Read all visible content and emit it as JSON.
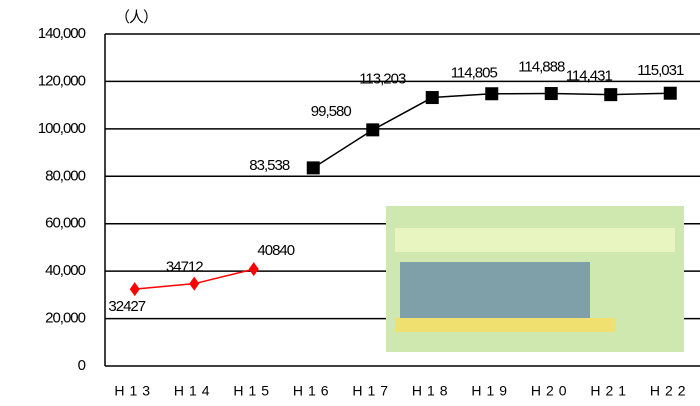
{
  "chart_data": {
    "type": "line",
    "y_unit_label": "（人）",
    "categories": [
      "H13",
      "H14",
      "H15",
      "H16",
      "H17",
      "H18",
      "H19",
      "H20",
      "H21",
      "H22"
    ],
    "series": [
      {
        "color": "#ff0000",
        "marker": "diamond",
        "values": [
          32427,
          34712,
          40840,
          null,
          null,
          null,
          null,
          null,
          null,
          null
        ]
      },
      {
        "color": "#000000",
        "marker": "square",
        "values": [
          null,
          null,
          null,
          83538,
          99580,
          113203,
          114805,
          114888,
          114431,
          115031
        ],
        "value_labels": [
          null,
          null,
          null,
          "83,538",
          "99,580",
          "113,203",
          "114,805",
          "114,888",
          "114,431",
          "115,031"
        ]
      }
    ],
    "ylim": [
      0,
      140000
    ],
    "yticks": [
      0,
      {
        "value": 20000,
        "label": "20,000"
      },
      {
        "value": 40000,
        "label": "40,000"
      },
      {
        "value": 60000,
        "label": "60,000"
      },
      {
        "value": 80000,
        "label": "80,000"
      },
      {
        "value": 100000,
        "label": "100,000"
      },
      {
        "value": 120000,
        "label": "120,000"
      },
      {
        "value": 140000,
        "label": "140,000"
      }
    ],
    "grid": true
  }
}
